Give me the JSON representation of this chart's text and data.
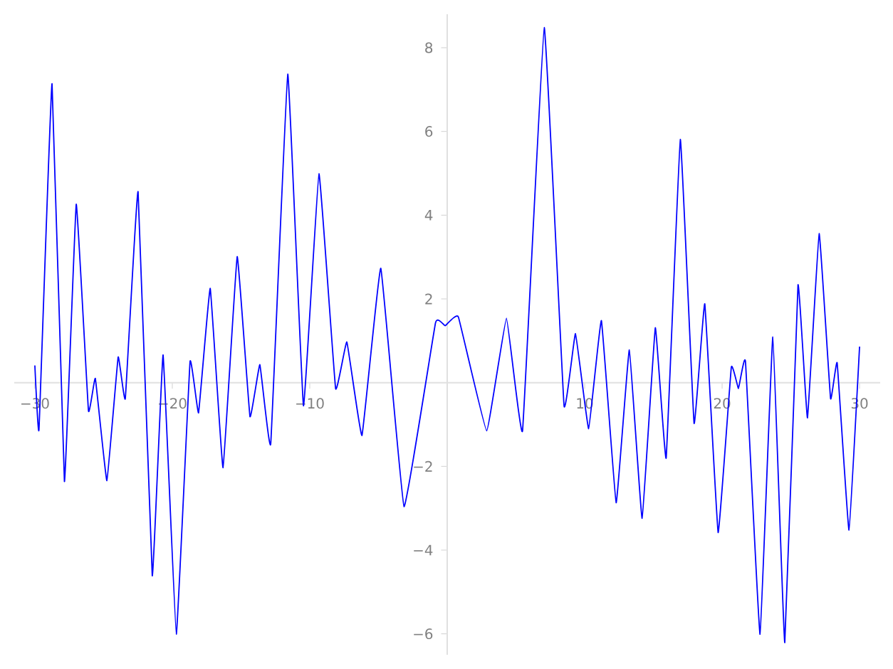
{
  "chart_data": {
    "type": "line",
    "x": [
      -30.0,
      -29.7,
      -28.75,
      -27.85,
      -26.99,
      -26.1,
      -25.6,
      -24.76,
      -23.94,
      -23.42,
      -22.49,
      -21.46,
      -20.67,
      -19.71,
      -18.71,
      -18.09,
      -17.24,
      -16.31,
      -15.28,
      -14.35,
      -13.63,
      -12.84,
      -11.6,
      -10.46,
      -9.33,
      -8.12,
      -7.3,
      -6.2,
      -4.83,
      -3.14,
      -0.85,
      -0.15,
      0.81,
      2.87,
      4.31,
      5.48,
      7.06,
      8.5,
      9.33,
      10.29,
      11.22,
      12.29,
      13.25,
      14.18,
      15.14,
      15.93,
      16.96,
      17.96,
      18.74,
      19.71,
      20.67,
      21.19,
      21.7,
      22.76,
      23.69,
      24.56,
      25.52,
      26.21,
      27.06,
      27.89,
      28.37,
      29.23,
      30.0
    ],
    "series": [
      {
        "color": "#0000ff",
        "values": [
          0.41,
          -1.12,
          7.14,
          -2.36,
          4.26,
          -0.67,
          0.1,
          -2.34,
          0.61,
          -0.38,
          4.56,
          -4.61,
          0.66,
          -6.01,
          0.5,
          -0.72,
          2.25,
          -2.03,
          3.01,
          -0.81,
          0.43,
          -1.46,
          7.37,
          -0.55,
          4.99,
          -0.14,
          0.97,
          -1.26,
          2.73,
          -2.96,
          1.43,
          1.36,
          1.57,
          -1.15,
          1.54,
          -1.15,
          8.48,
          -0.55,
          1.17,
          -1.1,
          1.48,
          -2.87,
          0.78,
          -3.24,
          1.31,
          -1.8,
          5.81,
          -0.97,
          1.88,
          -3.58,
          0.37,
          -0.14,
          0.5,
          -6.01,
          1.09,
          -6.21,
          2.33,
          -0.84,
          3.56,
          -0.38,
          0.47,
          -3.52,
          0.86
        ]
      }
    ],
    "xlim": [
      -31.5,
      31.5
    ],
    "ylim": [
      -6.5,
      8.8
    ],
    "xticks": [
      {
        "value": -30,
        "label": "−30"
      },
      {
        "value": -20,
        "label": "−20"
      },
      {
        "value": -10,
        "label": "−10"
      },
      10,
      20,
      30
    ],
    "yticks": [
      {
        "value": -6,
        "label": "−6"
      },
      {
        "value": -4,
        "label": "−4"
      },
      {
        "value": -2,
        "label": "−2"
      },
      2,
      4,
      6,
      8
    ]
  }
}
